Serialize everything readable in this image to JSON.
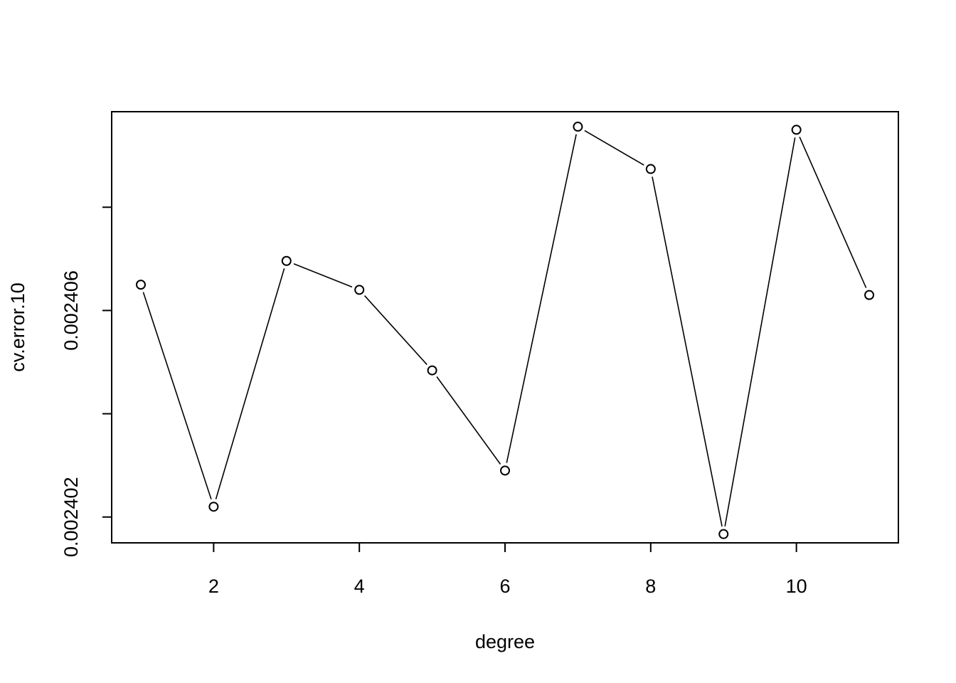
{
  "chart_data": {
    "type": "line",
    "title": "",
    "xlabel": "degree",
    "ylabel": "cv.error.10",
    "x": [
      1,
      2,
      3,
      4,
      5,
      6,
      7,
      8,
      9,
      10,
      11
    ],
    "series": [
      {
        "values": [
          0.0024065,
          0.0024022,
          0.00240696,
          0.0024064,
          0.00240484,
          0.0024029,
          0.00240956,
          0.00240874,
          0.00240167,
          0.0024095,
          0.0024063
        ]
      }
    ],
    "xlim": [
      0.6,
      11.4
    ],
    "ylim": [
      0.0024015,
      0.00240985
    ],
    "x_ticks": [
      2,
      4,
      6,
      8,
      10
    ],
    "x_tick_labels": [
      "2",
      "4",
      "6",
      "8",
      "10"
    ],
    "y_ticks": [
      0.002402,
      0.002404,
      0.002406,
      0.002408
    ],
    "y_tick_labels": [
      "0.002402",
      "",
      "0.002406",
      ""
    ],
    "grid": false,
    "legend": "none",
    "point_style": "open-circle",
    "line_color": "#000000"
  }
}
